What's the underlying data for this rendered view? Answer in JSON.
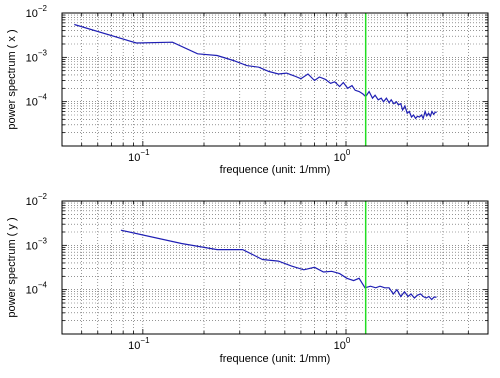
{
  "colors": {
    "series_line": "#1f1fb4",
    "marker_line": "#22dd22",
    "grid": "#555555",
    "axes": "#000000"
  },
  "chart_data": [
    {
      "type": "line",
      "xscale": "log",
      "yscale": "log",
      "xlim": [
        0.04,
        5.0
      ],
      "ylim": [
        1e-05,
        0.01
      ],
      "grid": true,
      "xlabel": "frequence (unit: 1/mm)",
      "ylabel": "power spectrum ( x )",
      "xtick_labels": [
        {
          "base": "10",
          "exp": "−1"
        },
        {
          "base": "10",
          "exp": "0"
        }
      ],
      "ytick_labels": [
        {
          "base": "10",
          "exp": "−4"
        },
        {
          "base": "10",
          "exp": "−3"
        },
        {
          "base": "10",
          "exp": "−2"
        }
      ],
      "vline_x": 1.25,
      "series": [
        {
          "x": [
            0.046,
            0.093,
            0.14,
            0.186,
            0.232,
            0.279,
            0.325,
            0.372,
            0.418,
            0.465,
            0.51,
            0.558,
            0.6,
            0.65,
            0.7,
            0.74,
            0.79,
            0.84,
            0.88,
            0.93,
            0.97,
            1.02,
            1.07,
            1.11,
            1.16,
            1.21,
            1.25,
            1.3,
            1.35,
            1.39,
            1.44,
            1.49,
            1.53,
            1.58,
            1.63,
            1.67,
            1.72,
            1.77,
            1.81,
            1.86,
            1.9,
            1.95,
            2.0,
            2.05,
            2.1,
            2.15,
            2.2,
            2.25,
            2.3,
            2.35,
            2.4,
            2.45,
            2.5,
            2.55,
            2.6,
            2.65,
            2.7,
            2.75,
            2.8
          ],
          "y": [
            0.0055,
            0.0021,
            0.0022,
            0.0012,
            0.0011,
            0.00085,
            0.00065,
            0.0006,
            0.00048,
            0.00042,
            0.00044,
            0.00038,
            0.00033,
            0.00042,
            0.0003,
            0.00036,
            0.00032,
            0.00026,
            0.00028,
            0.00022,
            0.00027,
            0.0002,
            0.00023,
            0.00018,
            0.00017,
            0.00015,
            0.00013,
            0.00017,
            0.00012,
            0.00014,
            0.00011,
            0.00012,
            0.0001,
            0.00012,
            9.5e-05,
            0.00011,
            9e-05,
            0.0001,
            8.5e-05,
            9e-05,
            6.5e-05,
            8e-05,
            5.5e-05,
            6e-05,
            4.5e-05,
            5e-05,
            4.2e-05,
            4.7e-05,
            4.5e-05,
            5e-05,
            4.2e-05,
            6e-05,
            4.8e-05,
            5.5e-05,
            4.7e-05,
            6e-05,
            5.2e-05,
            5.8e-05,
            5.8e-05
          ]
        }
      ]
    },
    {
      "type": "line",
      "xscale": "log",
      "yscale": "log",
      "xlim": [
        0.04,
        5.0
      ],
      "ylim": [
        1e-05,
        0.01
      ],
      "grid": true,
      "xlabel": "frequence (unit: 1/mm)",
      "ylabel": "power spectrum ( y )",
      "xtick_labels": [
        {
          "base": "10",
          "exp": "−1"
        },
        {
          "base": "10",
          "exp": "0"
        }
      ],
      "ytick_labels": [
        {
          "base": "10",
          "exp": "−4"
        },
        {
          "base": "10",
          "exp": "−3"
        },
        {
          "base": "10",
          "exp": "−2"
        }
      ],
      "vline_x": 1.25,
      "series": [
        {
          "x": [
            0.078,
            0.155,
            0.232,
            0.31,
            0.388,
            0.465,
            0.54,
            0.62,
            0.7,
            0.775,
            0.85,
            0.93,
            1.01,
            1.09,
            1.16,
            1.24,
            1.32,
            1.4,
            1.47,
            1.55,
            1.63,
            1.71,
            1.78,
            1.86,
            1.94,
            2.02,
            2.09,
            2.17,
            2.25,
            2.33,
            2.4,
            2.48,
            2.56,
            2.64,
            2.71,
            2.79
          ],
          "y": [
            0.0022,
            0.0011,
            0.0008,
            0.0008,
            0.00048,
            0.00044,
            0.00034,
            0.00028,
            0.00032,
            0.00025,
            0.00026,
            0.00023,
            0.00018,
            0.00016,
            0.00018,
            0.00011,
            0.00012,
            0.00011,
            0.00012,
            0.00011,
            0.00011,
            8e-05,
            0.0001,
            7e-05,
            9e-05,
            7e-05,
            8e-05,
            6.5e-05,
            7.5e-05,
            8e-05,
            7e-05,
            6.5e-05,
            7e-05,
            6e-05,
            6.8e-05,
            6.8e-05
          ]
        }
      ]
    }
  ]
}
